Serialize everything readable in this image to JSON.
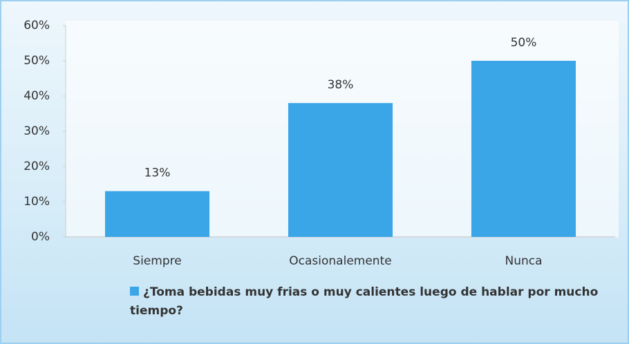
{
  "chart_data": {
    "type": "bar",
    "categories": [
      "Siempre",
      "Ocasionalemente",
      "Nunca"
    ],
    "series": [
      {
        "name": "¿Toma bebidas muy frias o muy calientes luego de hablar por mucho tiempo?",
        "color": "#3aa6e8",
        "values": [
          13,
          38,
          50
        ],
        "value_labels": [
          "13%",
          "38%",
          "50%"
        ]
      }
    ],
    "ylim": [
      0,
      60
    ],
    "yticks": [
      {
        "value": 0,
        "label": "0%"
      },
      {
        "value": 10,
        "label": "10%"
      },
      {
        "value": 20,
        "label": "20%"
      },
      {
        "value": 30,
        "label": "30%"
      },
      {
        "value": 40,
        "label": "40%"
      },
      {
        "value": 50,
        "label": "50%"
      },
      {
        "value": 60,
        "label": "60%"
      }
    ],
    "legend": "bottom"
  }
}
